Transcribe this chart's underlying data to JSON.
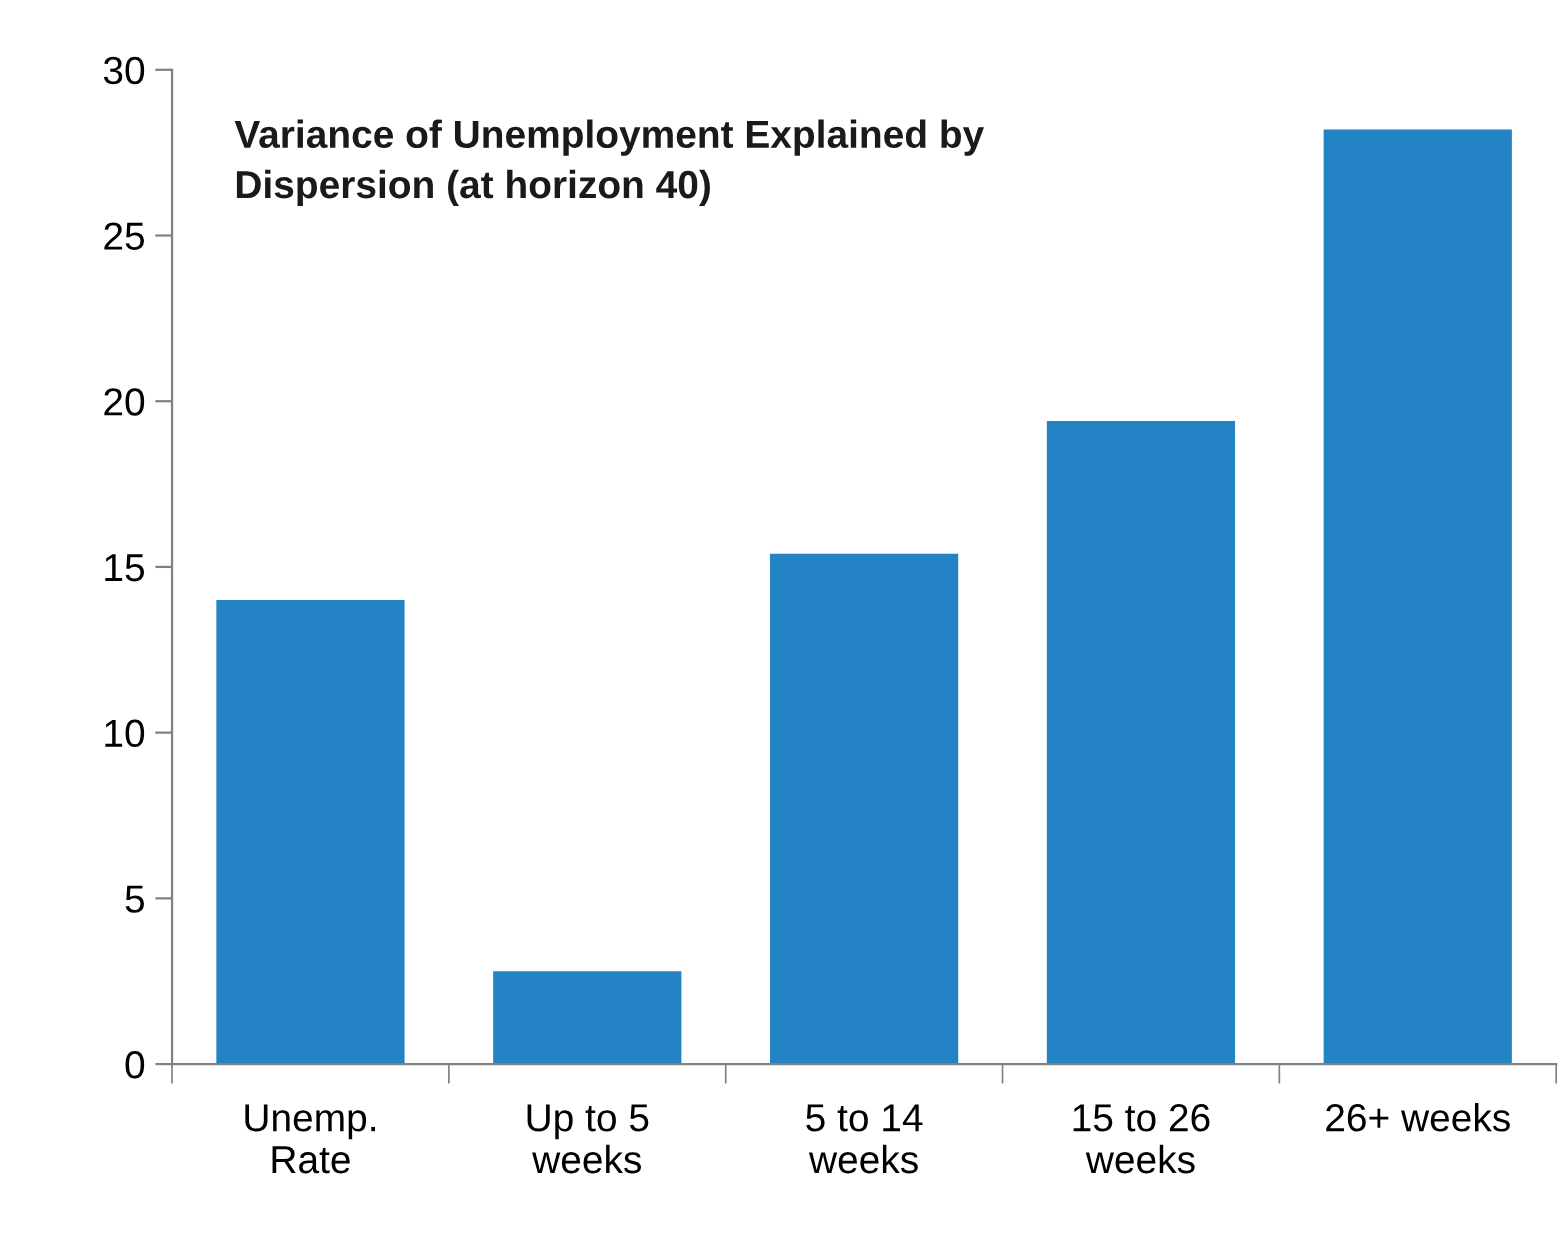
{
  "chart_data": {
    "type": "bar",
    "title": "Variance of Unemployment Explained by\nDispersion (at horizon 40)",
    "categories": [
      "Unemp.\nRate",
      "Up to 5\nweeks",
      "5 to 14\nweeks",
      "15 to 26\nweeks",
      "26+ weeks"
    ],
    "values": [
      14.0,
      2.8,
      15.4,
      19.4,
      28.2
    ],
    "color": "#2383c4",
    "ylim": [
      0,
      30
    ],
    "yticks": [
      0,
      5,
      10,
      15,
      20,
      25,
      30
    ],
    "grid": false,
    "legend": false
  }
}
